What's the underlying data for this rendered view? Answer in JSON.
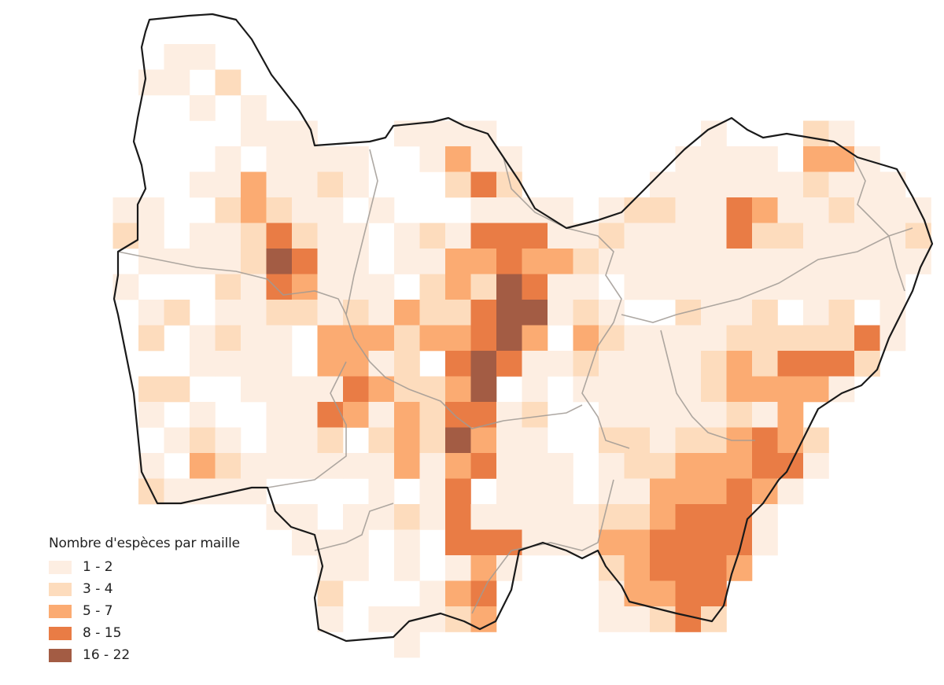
{
  "map": {
    "classes": [
      {
        "label": "1 - 2",
        "color": "#fdeee2"
      },
      {
        "label": "3 - 4",
        "color": "#fddcbd"
      },
      {
        "label": "5 - 7",
        "color": "#fbab72"
      },
      {
        "label": "8 - 15",
        "color": "#e97c45"
      },
      {
        "label": "16 - 22",
        "color": "#a35c44"
      }
    ],
    "cells": [
      "00110000000000000000000000000000",
      "01102000000000000000000000000000",
      "00010100000000000000000000000000",
      "00000111000111100000000100021000",
      "00001011110013110000001111033100",
      "00011311210002420000011111121110",
      "11002321101000111101221143112111",
      "21011242110121444112111142211112",
      "01111254110113343321111111111111",
      "10002143111023254110111111111110",
      "01201122121322455121002112012010",
      "02012110333233453032111122222410",
      "00011110331204541121111232444200",
      "02200111143223501011111233331000",
      "01010011431324412001111121300000",
      "00121011202325311002212234320000",
      "01032111111313411101223334410000",
      "02111100001014011101133343100000",
      "00000011011214111112234441000000",
      "00000001110104441113344441000000",
      "00000000110101310002344430000000",
      "00000000200013400001334400000000",
      "00000000101112300001124200000000",
      "00000000000100000000000000000000"
    ]
  },
  "legend": {
    "title": "Nombre d'espèces par maille",
    "items": [
      "1 - 2",
      "3 - 4",
      "5 - 7",
      "8 - 15",
      "16 - 22"
    ]
  }
}
